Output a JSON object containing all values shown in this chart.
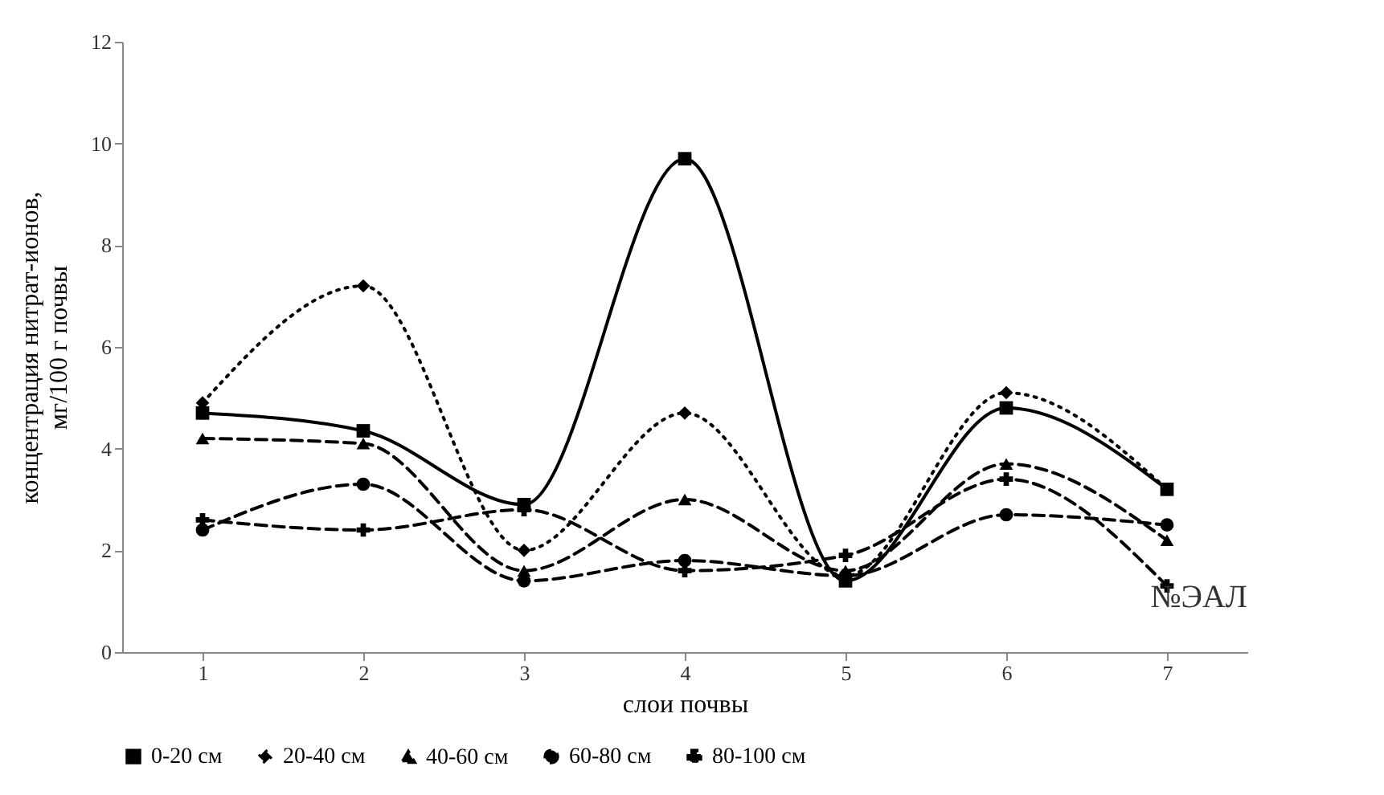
{
  "chart_data": {
    "type": "line",
    "xlabel": "слои почвы",
    "ylabel": "концентрация нитрат-ионов,\nмг/100 г почвы",
    "categories": [
      "1",
      "2",
      "3",
      "4",
      "5",
      "6",
      "7"
    ],
    "ylim": [
      0,
      12
    ],
    "yticks": [
      0,
      2,
      4,
      6,
      8,
      10,
      12
    ],
    "grid": false,
    "legend": "bottom",
    "annotations": [
      "№ЭАЛ"
    ],
    "series": [
      {
        "name": "0-20 см",
        "color": "#000000",
        "marker": "square",
        "line_style": "solid",
        "values": [
          4.7,
          4.35,
          2.9,
          9.7,
          1.4,
          4.8,
          3.2
        ]
      },
      {
        "name": "20-40 см",
        "color": "#000000",
        "marker": "diamond",
        "line_style": "dotted",
        "values": [
          4.9,
          7.2,
          2.0,
          4.7,
          1.5,
          5.1,
          3.2
        ]
      },
      {
        "name": "40-60 см",
        "color": "#000000",
        "marker": "triangle",
        "line_style": "dashed",
        "values": [
          4.2,
          4.1,
          1.6,
          3.0,
          1.6,
          3.7,
          2.2
        ]
      },
      {
        "name": "60-80 см",
        "color": "#000000",
        "marker": "circle",
        "line_style": "dashed",
        "values": [
          2.4,
          3.3,
          1.4,
          1.8,
          1.5,
          2.7,
          2.5
        ]
      },
      {
        "name": "80-100 см",
        "color": "#000000",
        "marker": "cross",
        "line_style": "dashed",
        "values": [
          2.6,
          2.4,
          2.8,
          1.6,
          1.9,
          3.4,
          1.3
        ]
      }
    ]
  }
}
